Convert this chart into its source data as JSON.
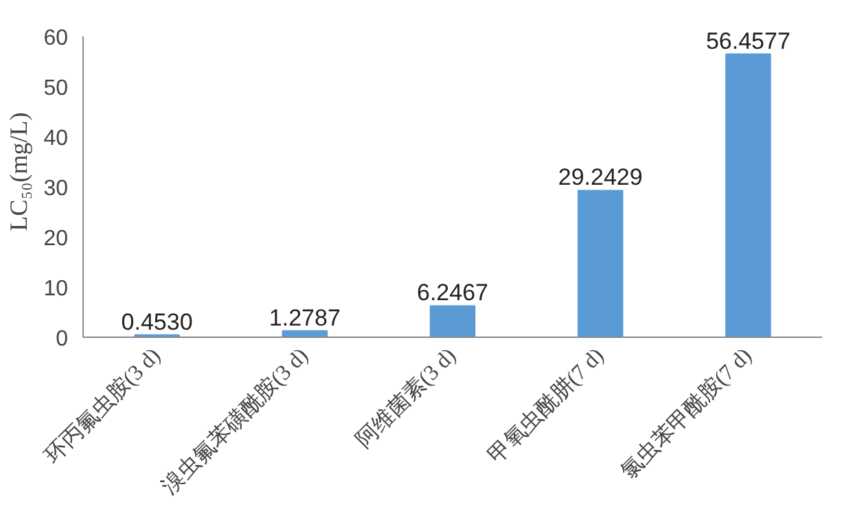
{
  "chart_data": {
    "type": "bar",
    "ylabel": "LC₅₀(mg/L)",
    "categories": [
      "环丙氟虫胺(3 d)",
      "溴虫氟苯磺酰胺(3 d)",
      "阿维菌素(3 d)",
      "甲氧虫酰肼(7 d)",
      "氯虫苯甲酰胺(7 d)"
    ],
    "values": [
      0.453,
      1.2787,
      6.2467,
      29.2429,
      56.4577
    ],
    "value_labels": [
      "0.4530",
      "1.2787",
      "6.2467",
      "29.2429",
      "56.4577"
    ],
    "color": "#5b9bd5",
    "ylim": [
      0,
      60
    ],
    "yticks": [
      0,
      10,
      20,
      30,
      40,
      50,
      60
    ],
    "grid": false
  }
}
